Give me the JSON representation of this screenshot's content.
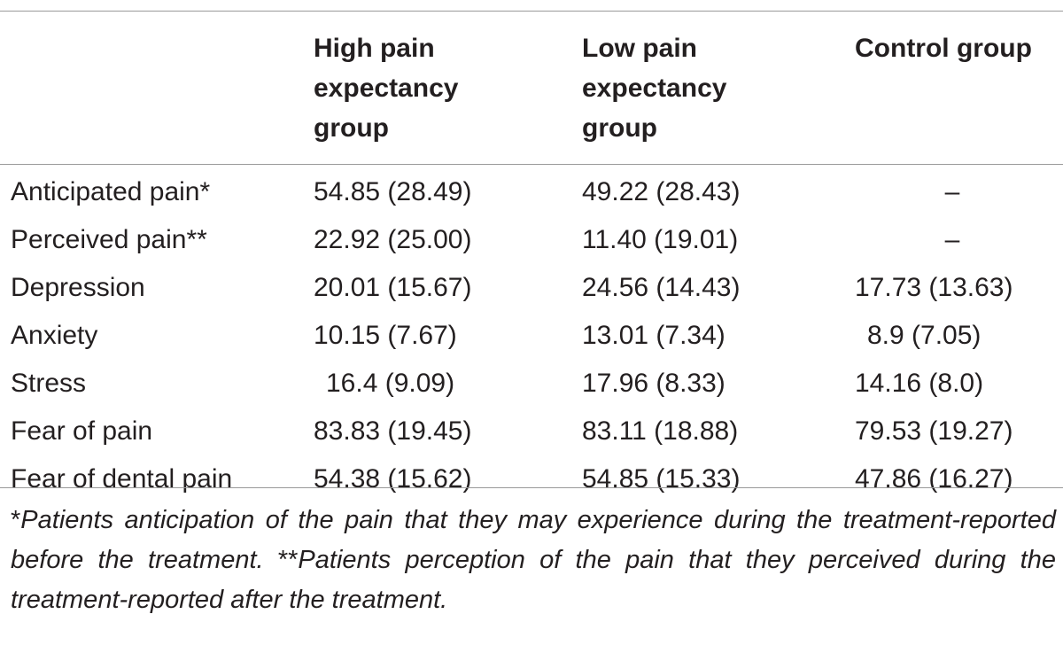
{
  "table": {
    "headers": [
      "",
      "High pain expectancy group",
      "Low pain expectancy group",
      "Control group"
    ],
    "header_lines": {
      "col1": [
        "High pain",
        "expectancy",
        "group"
      ],
      "col2": [
        "Low pain",
        "expectancy",
        "group"
      ],
      "col3": [
        "Control group"
      ]
    },
    "rows": [
      {
        "label": "Anticipated pain*",
        "high": "54.85 (28.49)",
        "low": "49.22 (28.43)",
        "control": "–"
      },
      {
        "label": "Perceived pain**",
        "high": "22.92 (25.00)",
        "low": "11.40 (19.01)",
        "control": "–"
      },
      {
        "label": "Depression",
        "high": "20.01 (15.67)",
        "low": "24.56 (14.43)",
        "control": "17.73 (13.63)"
      },
      {
        "label": "Anxiety",
        "high": "10.15 (7.67)",
        "low": "13.01 (7.34)",
        "control": "8.9 (7.05)"
      },
      {
        "label": "Stress",
        "high": "16.4 (9.09)",
        "low": "17.96 (8.33)",
        "control": "14.16 (8.0)"
      },
      {
        "label": "Fear of pain",
        "high": "83.83 (19.45)",
        "low": "83.11 (18.88)",
        "control": "79.53 (19.27)"
      },
      {
        "label": "Fear of dental pain",
        "high": "54.38 (15.62)",
        "low": "54.85 (15.33)",
        "control": "47.86 (16.27)"
      }
    ]
  },
  "footnote": {
    "mark1": "*",
    "text1": "Patients anticipation of the pain that they may experience during the treatment-reported before the treatment.",
    "mark2": "**",
    "text2": "Patients perception of the pain that they perceived during the treatment-reported after the treatment."
  }
}
